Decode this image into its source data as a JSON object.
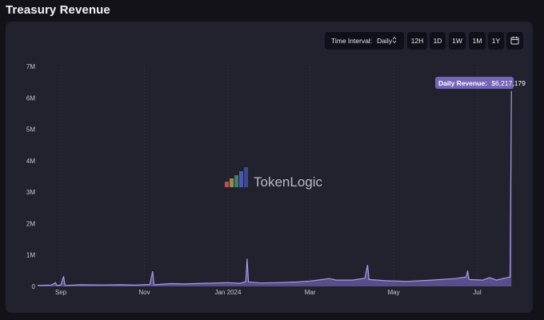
{
  "page": {
    "title": "Treasury Revenue"
  },
  "toolbar": {
    "interval_label": "Time Interval:",
    "interval_value": "Daily",
    "buttons": [
      "12H",
      "1D",
      "1W",
      "1M",
      "1Y"
    ],
    "calendar_icon": "calendar-icon"
  },
  "watermark": {
    "text": "TokenLogic"
  },
  "colors": {
    "line": "#a99ae6",
    "area": "#6b5da8",
    "tooltip": "#7465b8",
    "card": "#22222f"
  },
  "chart_data": {
    "type": "area",
    "title": "",
    "xlabel": "",
    "ylabel": "",
    "x_range": [
      "2023-08-15",
      "2024-07-27"
    ],
    "ylim": [
      0,
      7000000
    ],
    "y_ticks": [
      0,
      1000000,
      2000000,
      3000000,
      4000000,
      5000000,
      6000000,
      7000000
    ],
    "y_tick_labels": [
      "0",
      "1M",
      "2M",
      "3M",
      "4M",
      "5M",
      "6M",
      "7M"
    ],
    "x_ticks": [
      {
        "date": "2023-09-01",
        "label": "Sep"
      },
      {
        "date": "2023-11-01",
        "label": "Nov"
      },
      {
        "date": "2024-01-01",
        "label": "Jan 2024"
      },
      {
        "date": "2024-03-01",
        "label": "Mar"
      },
      {
        "date": "2024-05-01",
        "label": "May"
      },
      {
        "date": "2024-07-01",
        "label": "Jul"
      }
    ],
    "grid": true,
    "series": [
      {
        "name": "Daily Revenue",
        "points": [
          [
            "2023-08-15",
            30000
          ],
          [
            "2023-08-20",
            35000
          ],
          [
            "2023-08-25",
            40000
          ],
          [
            "2023-08-28",
            120000
          ],
          [
            "2023-08-29",
            30000
          ],
          [
            "2023-09-01",
            40000
          ],
          [
            "2023-09-03",
            320000
          ],
          [
            "2023-09-04",
            30000
          ],
          [
            "2023-09-15",
            50000
          ],
          [
            "2023-10-01",
            45000
          ],
          [
            "2023-10-15",
            50000
          ],
          [
            "2023-10-25",
            40000
          ],
          [
            "2023-11-05",
            60000
          ],
          [
            "2023-11-07",
            480000
          ],
          [
            "2023-11-08",
            50000
          ],
          [
            "2023-11-20",
            90000
          ],
          [
            "2023-12-01",
            80000
          ],
          [
            "2023-12-15",
            100000
          ],
          [
            "2024-01-01",
            120000
          ],
          [
            "2024-01-10",
            100000
          ],
          [
            "2024-01-14",
            150000
          ],
          [
            "2024-01-15",
            880000
          ],
          [
            "2024-01-16",
            140000
          ],
          [
            "2024-01-25",
            110000
          ],
          [
            "2024-02-05",
            120000
          ],
          [
            "2024-02-20",
            140000
          ],
          [
            "2024-03-01",
            170000
          ],
          [
            "2024-03-10",
            220000
          ],
          [
            "2024-03-15",
            250000
          ],
          [
            "2024-03-20",
            200000
          ],
          [
            "2024-04-01",
            200000
          ],
          [
            "2024-04-10",
            260000
          ],
          [
            "2024-04-12",
            680000
          ],
          [
            "2024-04-13",
            220000
          ],
          [
            "2024-04-25",
            180000
          ],
          [
            "2024-05-10",
            160000
          ],
          [
            "2024-05-25",
            190000
          ],
          [
            "2024-06-05",
            220000
          ],
          [
            "2024-06-15",
            250000
          ],
          [
            "2024-06-23",
            300000
          ],
          [
            "2024-06-24",
            500000
          ],
          [
            "2024-06-25",
            220000
          ],
          [
            "2024-07-05",
            200000
          ],
          [
            "2024-07-10",
            280000
          ],
          [
            "2024-07-15",
            200000
          ],
          [
            "2024-07-25",
            300000
          ],
          [
            "2024-07-26",
            6217179
          ]
        ]
      }
    ],
    "tooltip": {
      "label": "Daily Revenue:",
      "value": "$6,217,179"
    }
  }
}
